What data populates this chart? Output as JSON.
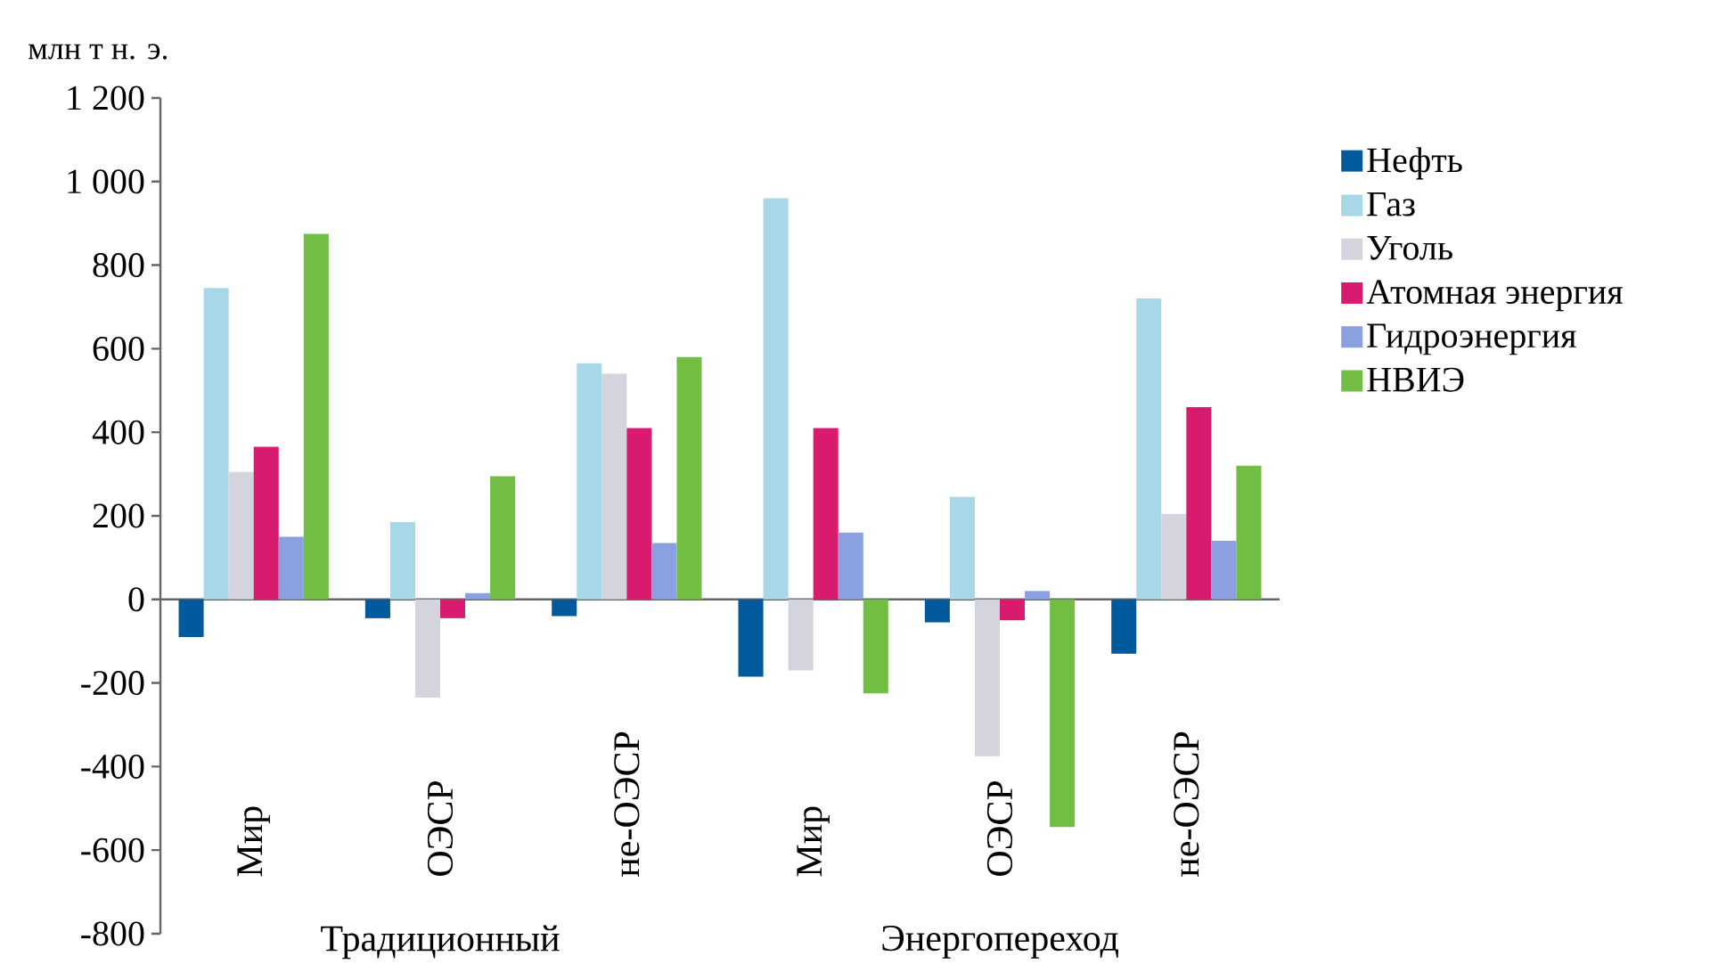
{
  "chart_data": {
    "type": "bar",
    "ylabel": "млн т н. э.",
    "categories": [
      "Мир",
      "ОЭСР",
      "не-ОЭСР",
      "Мир",
      "ОЭСР",
      "не-ОЭСР"
    ],
    "annotations": [
      "Традиционный",
      "Энергопереход"
    ],
    "series": [
      {
        "name": "Нефть",
        "color": "#005a9c",
        "values": [
          -90,
          -45,
          -40,
          -185,
          -55,
          -130
        ]
      },
      {
        "name": "Газ",
        "color": "#a8d8e8",
        "values": [
          745,
          185,
          565,
          960,
          245,
          720
        ]
      },
      {
        "name": "Уголь",
        "color": "#d4d4de",
        "values": [
          305,
          -235,
          540,
          -170,
          -375,
          205
        ]
      },
      {
        "name": "Атомная энергия",
        "color": "#d81b6e",
        "values": [
          365,
          -45,
          410,
          410,
          -50,
          460
        ]
      },
      {
        "name": "Гидроэнергия",
        "color": "#8aa0e0",
        "values": [
          150,
          15,
          135,
          160,
          20,
          140
        ]
      },
      {
        "name": "НВИЭ",
        "color": "#72be44",
        "values": [
          875,
          295,
          580,
          -225,
          -545,
          320
        ]
      }
    ],
    "ylim": [
      -800,
      1200
    ],
    "yticks": [
      {
        "value": 1200,
        "label": "1 200"
      },
      {
        "value": 1000,
        "label": "1 000"
      },
      800,
      600,
      400,
      200,
      0,
      -200,
      -400,
      -600,
      -800
    ],
    "legend": "right"
  }
}
